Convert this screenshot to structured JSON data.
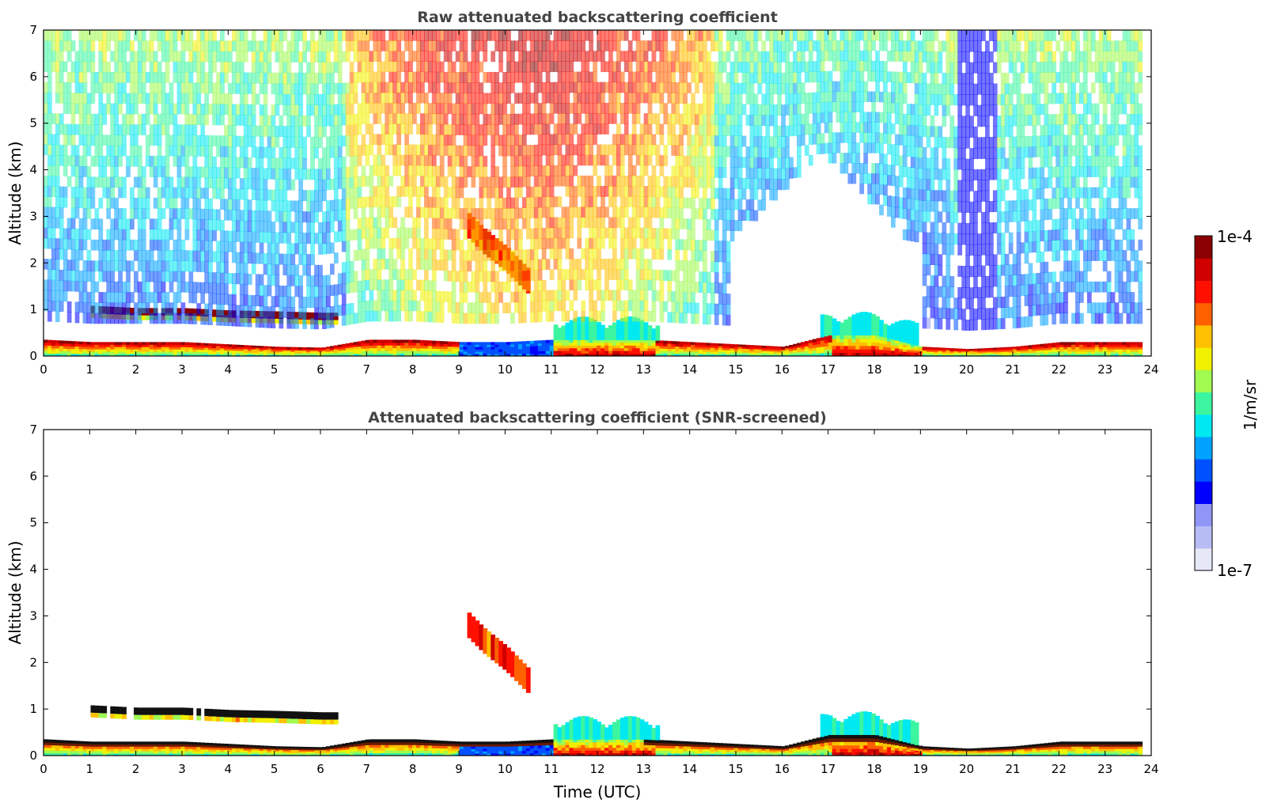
{
  "figure": {
    "colorbar": {
      "label": "1/m/sr",
      "max_label": "1e-4",
      "min_label": "1e-7",
      "scale": "log",
      "range": [
        1e-07,
        0.0001
      ],
      "colors": [
        "#e6e8f8",
        "#b8bcf5",
        "#8f96f5",
        "#0000ff",
        "#0050ff",
        "#00a2ff",
        "#00e8f0",
        "#3cf5a0",
        "#a0fa50",
        "#f0f000",
        "#ffc000",
        "#ff6000",
        "#ff1000",
        "#d00000",
        "#8b0000"
      ]
    }
  },
  "chart_data": [
    {
      "type": "heatmap",
      "title": "Raw attenuated backscattering coefficient",
      "xlabel": "",
      "ylabel": "Altitude (km)",
      "xlim": [
        0,
        24
      ],
      "ylim": [
        0,
        7
      ],
      "x_ticks": [
        "0",
        "1",
        "2",
        "3",
        "4",
        "5",
        "6",
        "7",
        "8",
        "9",
        "10",
        "11",
        "12",
        "13",
        "14",
        "15",
        "16",
        "17",
        "18",
        "19",
        "20",
        "21",
        "22",
        "23",
        "24"
      ],
      "y_ticks": [
        "0",
        "1",
        "2",
        "3",
        "4",
        "5",
        "6",
        "7"
      ],
      "features": {
        "boundary_layer_top_km": [
          [
            0,
            0.35
          ],
          [
            1,
            0.3
          ],
          [
            2,
            0.3
          ],
          [
            3,
            0.3
          ],
          [
            4,
            0.25
          ],
          [
            5,
            0.2
          ],
          [
            6,
            0.18
          ],
          [
            7,
            0.35
          ],
          [
            8,
            0.35
          ],
          [
            9,
            0.3
          ],
          [
            10,
            0.3
          ],
          [
            11,
            0.35
          ],
          [
            12,
            0.35
          ],
          [
            13,
            0.35
          ],
          [
            14,
            0.3
          ],
          [
            15,
            0.25
          ],
          [
            16,
            0.2
          ],
          [
            17,
            0.45
          ],
          [
            18,
            0.45
          ],
          [
            19,
            0.2
          ],
          [
            20,
            0.15
          ],
          [
            21,
            0.2
          ],
          [
            22,
            0.3
          ],
          [
            23,
            0.3
          ],
          [
            23.8,
            0.3
          ]
        ],
        "residual_layer_km": [
          [
            1,
            1.0
          ],
          [
            2,
            0.95
          ],
          [
            3,
            0.95
          ],
          [
            4,
            0.9
          ],
          [
            5,
            0.88
          ],
          [
            6,
            0.85
          ],
          [
            6.3,
            0.85
          ]
        ],
        "elevated_aerosol_layer": [
          [
            9.1,
            2.8
          ],
          [
            9.5,
            2.4
          ],
          [
            10,
            2.0
          ],
          [
            10.5,
            1.5
          ]
        ],
        "data_gap_x": [
          19.8,
          20.6
        ]
      }
    },
    {
      "type": "heatmap",
      "title": "Attenuated backscattering coefficient (SNR-screened)",
      "xlabel": "Time (UTC)",
      "ylabel": "Altitude (km)",
      "xlim": [
        0,
        24
      ],
      "ylim": [
        0,
        7
      ],
      "x_ticks": [
        "0",
        "1",
        "2",
        "3",
        "4",
        "5",
        "6",
        "7",
        "8",
        "9",
        "10",
        "11",
        "12",
        "13",
        "14",
        "15",
        "16",
        "17",
        "18",
        "19",
        "20",
        "21",
        "22",
        "23",
        "24"
      ],
      "y_ticks": [
        "0",
        "1",
        "2",
        "3",
        "4",
        "5",
        "6",
        "7"
      ]
    }
  ]
}
